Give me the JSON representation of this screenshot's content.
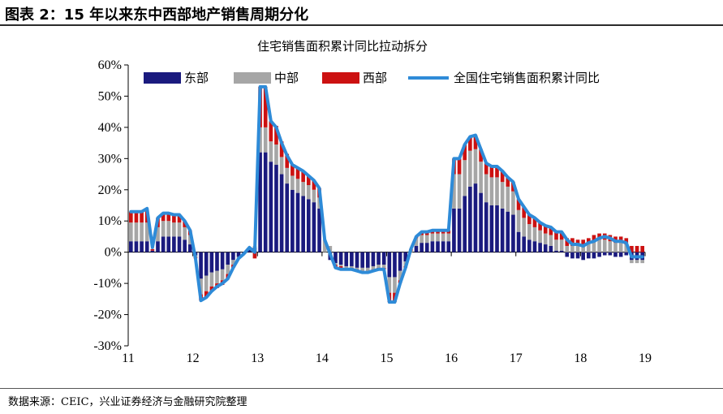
{
  "figure_title": "图表 2：15 年以来东中西部地产销售周期分化",
  "source_note": "数据来源：CEIC，兴业证券经济与金融研究院整理",
  "chart_data": {
    "type": "bar",
    "subtype": "stacked bar + line",
    "title": "住宅销售面积累计同比拉动拆分",
    "y_unit": "%",
    "ylim": [
      -30,
      60
    ],
    "yticks": [
      -30,
      -20,
      -10,
      0,
      10,
      20,
      30,
      40,
      50,
      60
    ],
    "ytick_labels": [
      "-30%",
      "-20%",
      "-10%",
      "0%",
      "10%",
      "20%",
      "30%",
      "40%",
      "50%",
      "60%"
    ],
    "xtick_labels": [
      "11",
      "12",
      "13",
      "14",
      "15",
      "16",
      "17",
      "18",
      "19"
    ],
    "xtick_positions": [
      "2011-01",
      "2012-01",
      "2013-01",
      "2014-01",
      "2015-01",
      "2016-01",
      "2017-01",
      "2018-01",
      "2019-01"
    ],
    "x_start": "2011-01",
    "x_end": "2019-03",
    "legend_position": "top",
    "grid": false,
    "colors": {
      "东部": "#1a1a7e",
      "中部": "#a6a6a6",
      "西部": "#cc1111",
      "全国": "#2e8bd8"
    },
    "series": [
      {
        "name": "东部",
        "type": "bar",
        "values": [
          3.5,
          3.5,
          3.5,
          3.5,
          0.5,
          3.5,
          5,
          5,
          5,
          5,
          4,
          2.5,
          -1,
          -8.5,
          -7.5,
          -6.5,
          -6,
          -5.5,
          -4,
          -2.5,
          -1.5,
          -0.5,
          1,
          1.5,
          32,
          32,
          29,
          28,
          25,
          22,
          20,
          19,
          18,
          17,
          16,
          14,
          0,
          -2.5,
          -3.5,
          -4,
          -4.5,
          -4.5,
          -5,
          -5,
          -5,
          -4.5,
          -4,
          -4,
          -8,
          -8,
          -6,
          -3,
          0,
          2,
          3,
          3,
          3.5,
          3.5,
          3.5,
          3.5,
          14,
          14,
          18,
          21,
          22,
          19,
          16,
          15,
          15,
          14,
          13,
          12,
          6.5,
          5,
          4,
          3.5,
          3,
          2.5,
          2,
          0.5,
          0.5,
          -1.5,
          -2,
          -2,
          -2.5,
          -2,
          -2,
          -1.5,
          -1,
          -1,
          -1.5,
          -1.5,
          -1,
          -2.5,
          -2.5,
          -2.5
        ]
      },
      {
        "name": "中部",
        "type": "bar",
        "values": [
          6,
          6,
          6,
          6,
          0,
          4.5,
          5,
          5,
          4.5,
          4.5,
          4,
          3,
          -0.5,
          -5,
          -5,
          -4.5,
          -4,
          -3.5,
          -3,
          -1.5,
          -0.5,
          0,
          0.5,
          0.5,
          8,
          8,
          6.5,
          6.5,
          5.5,
          5,
          4.5,
          4.5,
          4.5,
          4.5,
          4,
          3.5,
          4,
          2,
          -0.5,
          -0.5,
          -0.5,
          -0.5,
          -0.5,
          -1,
          -1,
          -1,
          -1,
          -1,
          -5,
          -5,
          -3,
          -1.5,
          0.5,
          2.5,
          2.5,
          2.5,
          2.5,
          2.5,
          2.5,
          2.5,
          11,
          11,
          11.5,
          11.5,
          11,
          10,
          9,
          9,
          9,
          8.5,
          8,
          7.5,
          7,
          6,
          5,
          4.5,
          4,
          3.5,
          3.5,
          3.5,
          3.5,
          2,
          2,
          2,
          2,
          3,
          3.5,
          4,
          4,
          3.5,
          3,
          3,
          2.5,
          -1,
          -1,
          -1
        ]
      },
      {
        "name": "西部",
        "type": "bar",
        "values": [
          3.5,
          3.5,
          3.5,
          4,
          0.5,
          3,
          2.5,
          2.5,
          2.5,
          2.5,
          2,
          1.5,
          -0.5,
          -2,
          -2,
          -1.5,
          -1.5,
          -1.5,
          -1.5,
          -1,
          0,
          0,
          0,
          -2,
          13,
          13,
          6.5,
          6,
          5,
          4.5,
          3.5,
          3.5,
          3.5,
          3,
          3,
          3,
          0,
          0,
          -1,
          -1,
          -0.5,
          -0.5,
          -0.5,
          -0.5,
          -0.5,
          -0.5,
          -0.5,
          -0.5,
          -3,
          -3,
          -1,
          -0.5,
          0.5,
          0.5,
          1,
          1,
          1,
          1,
          1,
          1,
          5,
          5,
          5,
          4.5,
          4.5,
          4,
          3.5,
          3.5,
          3.5,
          3.5,
          3,
          3,
          3.5,
          3.5,
          3,
          3,
          2.5,
          2.5,
          2.5,
          2.5,
          2.5,
          2.5,
          2.5,
          2,
          2,
          1.5,
          2,
          2,
          2,
          2,
          2,
          2,
          2,
          2,
          2,
          2
        ]
      },
      {
        "name": "全国住宅销售面积累计同比",
        "type": "line",
        "values": [
          13,
          13,
          13,
          14,
          1.5,
          11,
          12.5,
          12.5,
          12,
          12,
          10,
          7,
          -2,
          -15.5,
          -14.5,
          -12.5,
          -11,
          -10,
          -8.5,
          -5,
          -2,
          -0.5,
          1.5,
          0,
          53,
          53,
          42,
          40,
          35,
          31,
          28,
          27,
          26,
          24.5,
          23,
          20.5,
          4,
          -0.5,
          -5,
          -5.5,
          -5.5,
          -5.5,
          -6,
          -6.5,
          -6.5,
          -6,
          -5.5,
          -5.5,
          -16,
          -16,
          -10,
          -5,
          1,
          5,
          6.5,
          6.5,
          7,
          7,
          7,
          7,
          30,
          30,
          34.5,
          37,
          37.5,
          33,
          28.5,
          27.5,
          27.5,
          26,
          24,
          22.5,
          17,
          14.5,
          12,
          11,
          9.5,
          8.5,
          8,
          6.5,
          6.5,
          4,
          2.5,
          2.5,
          2,
          3,
          3.5,
          4.5,
          5,
          4.5,
          3.5,
          3.5,
          3,
          -1.5,
          -1.5,
          -1.5
        ]
      }
    ]
  }
}
